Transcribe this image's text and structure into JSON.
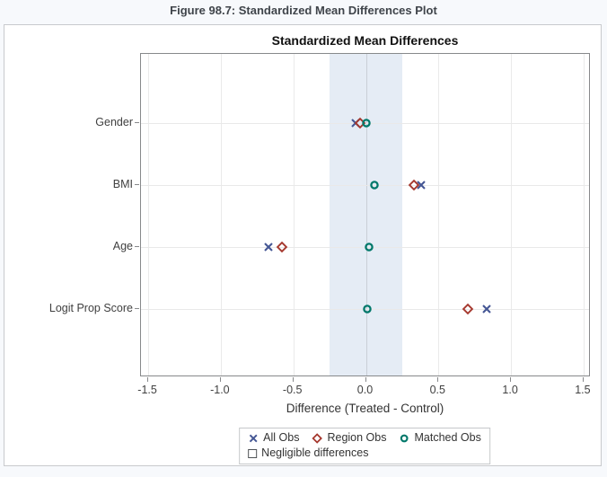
{
  "figure_title": "Figure 98.7: Standardized Mean Differences Plot",
  "chart_data": {
    "type": "scatter",
    "title": "Standardized Mean Differences",
    "xlabel": "Difference (Treated - Control)",
    "orientation": "horizontal-categories",
    "categories": [
      "Gender",
      "BMI",
      "Age",
      "Logit Prop Score"
    ],
    "x_ticks": [
      -1.5,
      -1.0,
      -0.5,
      0.0,
      0.5,
      1.0,
      1.5
    ],
    "x_tick_labels": [
      "-1.5",
      "-1.0",
      "-0.5",
      "0.0",
      "0.5",
      "1.0",
      "1.5"
    ],
    "xlim": [
      -1.55,
      1.55
    ],
    "grid": true,
    "legend_position": "bottom",
    "band": {
      "label": "Negligible differences",
      "min": -0.25,
      "max": 0.25,
      "fill_color": "#e5ecf5",
      "legend_swatch_border": "#4f5356"
    },
    "series": [
      {
        "name": "All Obs",
        "marker": "x",
        "color": "#445694",
        "values": [
          -0.07,
          0.38,
          -0.67,
          0.83
        ]
      },
      {
        "name": "Region Obs",
        "marker": "diamond",
        "color": "#a5372d",
        "values": [
          -0.04,
          0.33,
          -0.58,
          0.7
        ]
      },
      {
        "name": "Matched Obs",
        "marker": "circle",
        "color": "#00786a",
        "values": [
          0.0,
          0.06,
          0.02,
          0.01
        ]
      }
    ]
  }
}
